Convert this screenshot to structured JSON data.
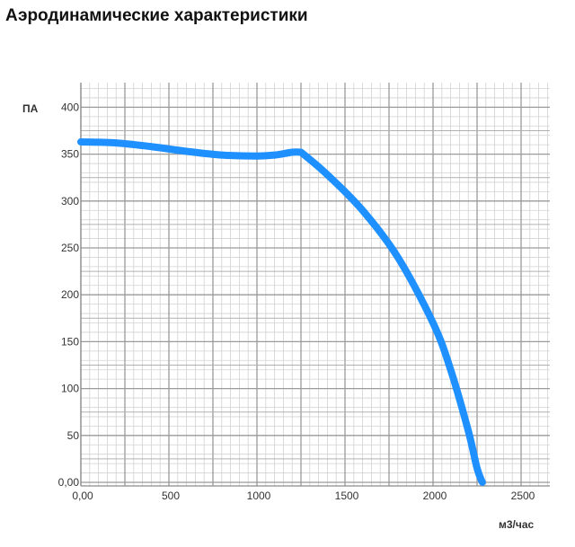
{
  "page": {
    "title": "Аэродинамические характеристики"
  },
  "chart_data": {
    "type": "line",
    "title": "Аэродинамические характеристики",
    "xlabel": "м3/час",
    "ylabel": "ПА",
    "xlim": [
      0,
      2800
    ],
    "ylim": [
      0,
      420
    ],
    "x_tick_labels": [
      "0,00",
      "500",
      "1000",
      "1500",
      "2000",
      "2500"
    ],
    "x_tick_values": [
      0,
      500,
      1000,
      1500,
      2000,
      2500
    ],
    "y_tick_labels": [
      "0,00",
      "50",
      "100",
      "150",
      "200",
      "250",
      "300",
      "350",
      "400"
    ],
    "y_tick_values": [
      0,
      50,
      100,
      150,
      200,
      250,
      300,
      350,
      400
    ],
    "grid": true,
    "line_color": "#1e90ff",
    "series": [
      {
        "x": [
          0,
          200,
          400,
          600,
          800,
          1000,
          1100,
          1200,
          1250,
          1400,
          1600,
          1800,
          2000,
          2100,
          2200,
          2250,
          2280
        ],
        "y": [
          363,
          362,
          358,
          353,
          349,
          348,
          349,
          352,
          352,
          328,
          290,
          240,
          170,
          120,
          55,
          15,
          0
        ]
      }
    ]
  }
}
